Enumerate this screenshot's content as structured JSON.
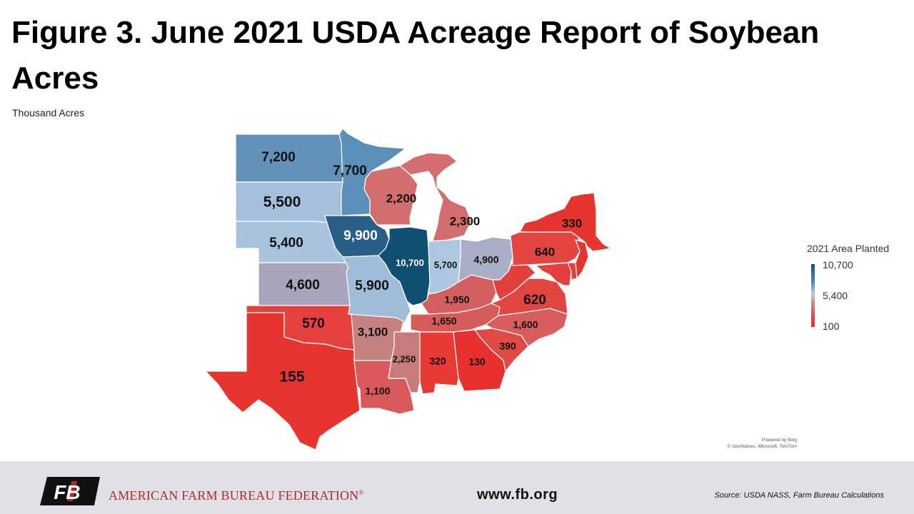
{
  "title": "Figure 3. June 2021 USDA Acreage Report of Soybean Acres",
  "subtitle": "Thousand Acres",
  "legend": {
    "title": "2021 Area Planted",
    "max_label": "10,700",
    "mid_label": "5,400",
    "min_label": "100",
    "colors": {
      "high": "#10506f",
      "mid": "#b8cce0",
      "low": "#e8312f"
    }
  },
  "states": [
    {
      "id": "ND",
      "value_label": "7,200",
      "color": "#6193ba"
    },
    {
      "id": "SD",
      "value_label": "5,500",
      "color": "#a4c0dc"
    },
    {
      "id": "NE",
      "value_label": "5,400",
      "color": "#a9c3dd"
    },
    {
      "id": "KS",
      "value_label": "4,600",
      "color": "#a8a6bd"
    },
    {
      "id": "OK",
      "value_label": "570",
      "color": "#e4403d"
    },
    {
      "id": "TX",
      "value_label": "155",
      "color": "#e6352f"
    },
    {
      "id": "MN",
      "value_label": "7,700",
      "color": "#5c8fb7"
    },
    {
      "id": "IA",
      "value_label": "9,900",
      "color": "#275f86"
    },
    {
      "id": "MO",
      "value_label": "5,900",
      "color": "#9fbcd8"
    },
    {
      "id": "AR",
      "value_label": "3,100",
      "color": "#c6827f"
    },
    {
      "id": "LA",
      "value_label": "1,100",
      "color": "#d9595a"
    },
    {
      "id": "WI",
      "value_label": "2,200",
      "color": "#d46d6e"
    },
    {
      "id": "IL",
      "value_label": "10,700",
      "color": "#0f4f70"
    },
    {
      "id": "MS",
      "value_label": "2,250",
      "color": "#c77b7d"
    },
    {
      "id": "MI",
      "value_label": "2,300",
      "color": "#d46d6f"
    },
    {
      "id": "IN",
      "value_label": "5,700",
      "color": "#adc7e0"
    },
    {
      "id": "KY",
      "value_label": "1,950",
      "color": "#d35f60"
    },
    {
      "id": "TN",
      "value_label": "1,650",
      "color": "#d55c5b"
    },
    {
      "id": "AL",
      "value_label": "320",
      "color": "#e63a33"
    },
    {
      "id": "OH",
      "value_label": "4,900",
      "color": "#a9aec6"
    },
    {
      "id": "GA",
      "value_label": "130",
      "color": "#e8312f"
    },
    {
      "id": "SC",
      "value_label": "390",
      "color": "#df4a44"
    },
    {
      "id": "NC",
      "value_label": "1,600",
      "color": "#d85d5c"
    },
    {
      "id": "VA",
      "value_label": "620",
      "color": "#e2443f"
    },
    {
      "id": "PA",
      "value_label": "640",
      "color": "#e2443f"
    },
    {
      "id": "NY",
      "value_label": "330",
      "color": "#e6352f"
    },
    {
      "id": "WV",
      "value_label": "",
      "color": "#e2403c"
    },
    {
      "id": "MD",
      "value_label": "",
      "color": "#e2403c"
    },
    {
      "id": "DE",
      "value_label": "",
      "color": "#e2403c"
    },
    {
      "id": "NJ",
      "value_label": "",
      "color": "#e6352f"
    }
  ],
  "credit": {
    "line1": "Powered by Bing",
    "line2": "© GeoNames, Microsoft, TomTom"
  },
  "footer": {
    "org_name": "AMERICAN FARM BUREAU FEDERATION",
    "registered": "®",
    "logo_text": "FB",
    "website": "www.fb.org",
    "source": "Source: USDA NASS, Farm Bureau Calculations"
  }
}
